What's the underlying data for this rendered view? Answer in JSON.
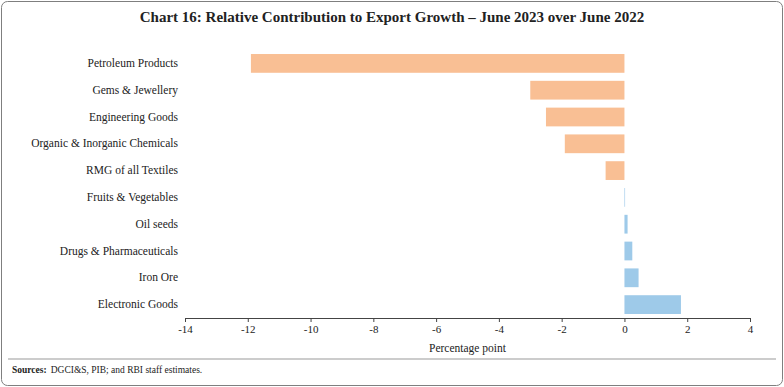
{
  "chart_data": {
    "type": "bar",
    "orientation": "horizontal",
    "title": "Chart 16: Relative Contribution to Export Growth – June 2023 over June 2022",
    "categories": [
      "Petroleum Products",
      "Gems & Jewellery",
      "Engineering Goods",
      "Organic & Inorganic Chemicals",
      "RMG of all Textiles",
      "Fruits & Vegetables",
      "Oil seeds",
      "Drugs & Pharmaceuticals",
      "Iron Ore",
      "Electronic Goods"
    ],
    "values": [
      -11.9,
      -3.0,
      -2.5,
      -1.9,
      -0.6,
      0.02,
      0.1,
      0.25,
      0.45,
      1.8
    ],
    "colors": [
      "#f9bf94",
      "#f9bf94",
      "#f9bf94",
      "#f9bf94",
      "#f9bf94",
      "#9ecae9",
      "#9ecae9",
      "#9ecae9",
      "#9ecae9",
      "#9ecae9"
    ],
    "xlim": [
      -14,
      4
    ],
    "xticks": [
      -14,
      -12,
      -10,
      -8,
      -6,
      -4,
      -2,
      0,
      2,
      4
    ],
    "xlabel": "Percentage point",
    "grid": false,
    "source_label": "Sources:",
    "source": "DGCI&S, PIB; and RBI staff estimates."
  }
}
